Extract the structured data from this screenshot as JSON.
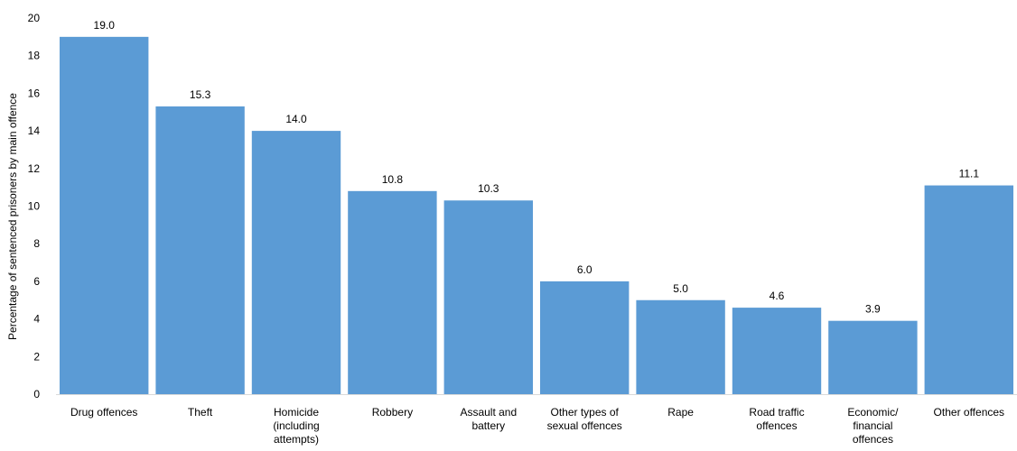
{
  "chart_data": {
    "type": "bar",
    "categories": [
      [
        "Drug offences"
      ],
      [
        "Theft"
      ],
      [
        "Homicide",
        "(including",
        "attempts)"
      ],
      [
        "Robbery"
      ],
      [
        "Assault and",
        "battery"
      ],
      [
        "Other types of",
        "sexual offences"
      ],
      [
        "Rape"
      ],
      [
        "Road traffic",
        "offences"
      ],
      [
        "Economic/",
        "financial",
        "offences"
      ],
      [
        "Other offences"
      ]
    ],
    "values": [
      19.0,
      15.3,
      14.0,
      10.8,
      10.3,
      6.0,
      5.0,
      4.6,
      3.9,
      11.1
    ],
    "value_labels": [
      "19.0",
      "15.3",
      "14.0",
      "10.8",
      "10.3",
      "6.0",
      "5.0",
      "4.6",
      "3.9",
      "11.1"
    ],
    "title": "",
    "xlabel": "",
    "ylabel": "Percentage of sentenced prisoners by main offence",
    "ylim": [
      0,
      20
    ],
    "yticks": [
      0,
      2,
      4,
      6,
      8,
      10,
      12,
      14,
      16,
      18,
      20
    ],
    "grid": false,
    "legend": "none",
    "bar_color": "#5b9bd5",
    "axis_color": "#d9d9d9"
  }
}
